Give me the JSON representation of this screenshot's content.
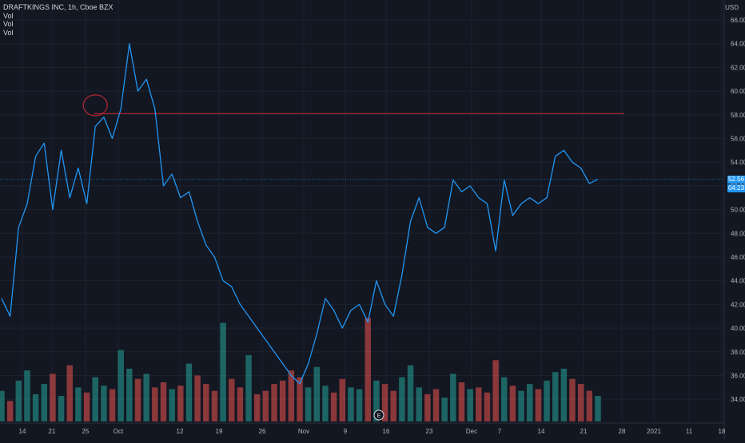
{
  "legend": {
    "symbol": "DRAFTKINGS INC, 1h, Cboe BZX",
    "vol_labels": [
      "Vol",
      "Vol",
      "Vol"
    ]
  },
  "currency": "USD",
  "price_tags": {
    "last_price": "52.56",
    "countdown": "04:23"
  },
  "event_badge": "E",
  "colors": {
    "background": "#131722",
    "line": "#2196f3",
    "horizontal_line": "#b22833",
    "volume_up": "#26a69a",
    "volume_down": "#ef5350",
    "grid": "#1e222d",
    "text": "#b2b5be"
  },
  "chart_data": {
    "type": "line",
    "title": "",
    "ylim": [
      33,
      66
    ],
    "grid": true,
    "y_ticks": [
      34,
      36,
      38,
      40,
      42,
      44,
      46,
      48,
      50,
      52,
      54,
      56,
      58,
      60,
      62,
      64,
      66
    ],
    "y_tick_labels": [
      "34.00",
      "36.00",
      "38.00",
      "40.00",
      "42.00",
      "44.00",
      "46.00",
      "48.00",
      "50.00",
      "52.00",
      "54.00",
      "56.00",
      "58.00",
      "60.00",
      "62.00",
      "64.00",
      "66.00"
    ],
    "x_tick_labels": [
      "14",
      "21",
      "25",
      "Oct",
      "12",
      "19",
      "26",
      "Nov",
      "9",
      "16",
      "23",
      "Dec",
      "7",
      "14",
      "21",
      "28",
      "2021",
      "11",
      "18"
    ],
    "x": [
      "Sep 11",
      "Sep 14",
      "Sep 16",
      "Sep 18",
      "Sep 21",
      "Sep 22",
      "Sep 23",
      "Sep 24",
      "Sep 25",
      "Sep 28",
      "Sep 29",
      "Sep 30",
      "Oct 1",
      "Oct 2",
      "Oct 5",
      "Oct 6",
      "Oct 7",
      "Oct 8",
      "Oct 9",
      "Oct 12",
      "Oct 13",
      "Oct 14",
      "Oct 15",
      "Oct 16",
      "Oct 19",
      "Oct 20",
      "Oct 21",
      "Oct 22",
      "Oct 23",
      "Oct 26",
      "Oct 27",
      "Oct 28",
      "Oct 29",
      "Oct 30",
      "Nov 2",
      "Nov 3",
      "Nov 4",
      "Nov 5",
      "Nov 6",
      "Nov 9",
      "Nov 10",
      "Nov 11",
      "Nov 12",
      "Nov 13",
      "Nov 16",
      "Nov 17",
      "Nov 18",
      "Nov 19",
      "Nov 20",
      "Nov 23",
      "Nov 24",
      "Nov 25",
      "Nov 27",
      "Nov 30",
      "Dec 1",
      "Dec 2",
      "Dec 3",
      "Dec 4",
      "Dec 7",
      "Dec 8",
      "Dec 9",
      "Dec 10",
      "Dec 11",
      "Dec 14",
      "Dec 15",
      "Dec 16",
      "Dec 17",
      "Dec 18",
      "Dec 21",
      "Dec 22",
      "Dec 23"
    ],
    "series": [
      {
        "values": [
          42.5,
          41.0,
          48.5,
          50.5,
          54.5,
          55.6,
          50.0,
          55.0,
          51.0,
          53.5,
          50.5,
          57.0,
          57.8,
          56.0,
          58.5,
          64.0,
          60.0,
          61.0,
          58.5,
          52.0,
          53.0,
          51.0,
          51.5,
          49.0,
          47.0,
          46.0,
          44.0,
          43.5,
          42.0,
          41.0,
          40.0,
          39.0,
          38.0,
          37.0,
          36.0,
          35.3,
          37.0,
          39.5,
          42.5,
          41.5,
          40.0,
          41.5,
          42.0,
          40.5,
          44.0,
          42.0,
          41.0,
          44.5,
          49.0,
          51.0,
          48.5,
          48.0,
          48.5,
          52.5,
          51.5,
          52.0,
          51.0,
          50.5,
          46.5,
          52.5,
          49.5,
          50.5,
          51.0,
          50.5,
          51.0,
          54.5,
          55.0,
          54.0,
          53.5,
          52.2,
          52.56
        ]
      }
    ],
    "horizontal_line": {
      "value": 58.1
    },
    "highlight_circle": {
      "x": "Sep 30",
      "y": 58.8
    },
    "volume": {
      "values": [
        1.8,
        1.2,
        2.4,
        3.0,
        1.6,
        2.2,
        2.8,
        1.5,
        3.3,
        2.0,
        1.7,
        2.6,
        2.1,
        1.9,
        4.2,
        3.1,
        2.5,
        2.8,
        2.0,
        2.3,
        1.9,
        2.1,
        3.4,
        2.7,
        2.2,
        1.8,
        5.8,
        2.5,
        2.0,
        3.9,
        1.6,
        1.8,
        2.2,
        2.4,
        3.0,
        2.6,
        2.0,
        3.2,
        2.1,
        1.7,
        2.5,
        2.0,
        1.9,
        6.1,
        2.4,
        2.2,
        1.8,
        2.6,
        3.3,
        2.0,
        1.6,
        1.9,
        1.4,
        2.8,
        2.3,
        1.9,
        2.0,
        1.7,
        3.6,
        2.6,
        2.1,
        1.8,
        2.2,
        1.9,
        2.4,
        2.9,
        3.1,
        2.5,
        2.2,
        1.8,
        1.5
      ],
      "up": [
        1,
        0,
        1,
        1,
        1,
        1,
        0,
        1,
        0,
        1,
        0,
        1,
        1,
        0,
        1,
        1,
        0,
        1,
        0,
        0,
        1,
        0,
        1,
        0,
        0,
        0,
        1,
        0,
        0,
        1,
        0,
        0,
        0,
        0,
        0,
        0,
        1,
        1,
        1,
        0,
        0,
        1,
        1,
        0,
        1,
        0,
        0,
        1,
        1,
        1,
        0,
        0,
        1,
        1,
        0,
        1,
        0,
        0,
        0,
        1,
        0,
        1,
        1,
        0,
        1,
        1,
        1,
        0,
        0,
        0,
        1
      ]
    }
  }
}
